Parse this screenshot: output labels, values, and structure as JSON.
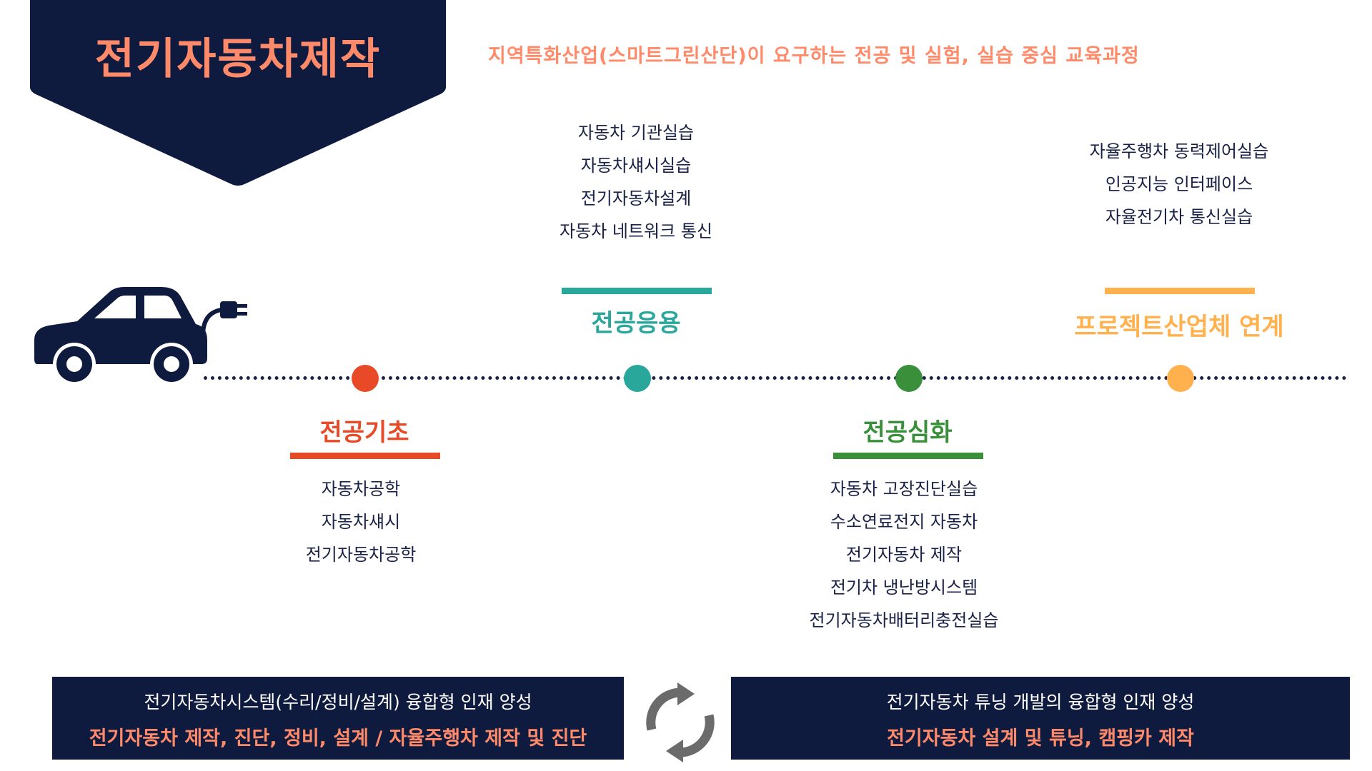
{
  "title": "전기자동차제작",
  "subtitle": "지역특화산업(스마트그린산단)이 요구하는 전공 및 실험, 실습 중심 교육과정",
  "stages": {
    "basic": {
      "title": "전공기초",
      "color": "#e84a27",
      "courses": [
        "자동차공학",
        "자동차섀시",
        "전기자동차공학"
      ]
    },
    "applied": {
      "title": "전공응용",
      "color": "#2aa79b",
      "courses": [
        "자동차 기관실습",
        "자동차섀시실습",
        "전기자동차설계",
        "자동차 네트워크 통신"
      ]
    },
    "advanced": {
      "title": "전공심화",
      "color": "#3a8f3b",
      "courses": [
        "자동차 고장진단실습",
        "수소연료전지 자동차",
        "전기자동차 제작",
        "전기차 냉난방시스템",
        "전기자동차배터리충전실습"
      ]
    },
    "industry": {
      "title": "프로젝트산업체 연계",
      "color": "#ffb14e",
      "courses": [
        "자율주행차 동력제어실습",
        "인공지능 인터페이스",
        "자율전기차 통신실습"
      ]
    }
  },
  "bottom": {
    "left": {
      "line1": "전기자동차시스템(수리/정비/설계) 융합형 인재 양성",
      "line2": "전기자동차 제작, 진단, 정비, 설계 / 자율주행차 제작 및 진단"
    },
    "right": {
      "line1": "전기자동차 튜닝 개발의 융합형 인재 양성",
      "line2": "전기자동차 설계 및 튜닝, 캠핑카 제작"
    }
  },
  "icons": {
    "car": "electric-car-icon",
    "cycle": "cycle-arrows-icon"
  },
  "colors": {
    "navy": "#0f1a3f",
    "accent": "#ff8a6a"
  }
}
